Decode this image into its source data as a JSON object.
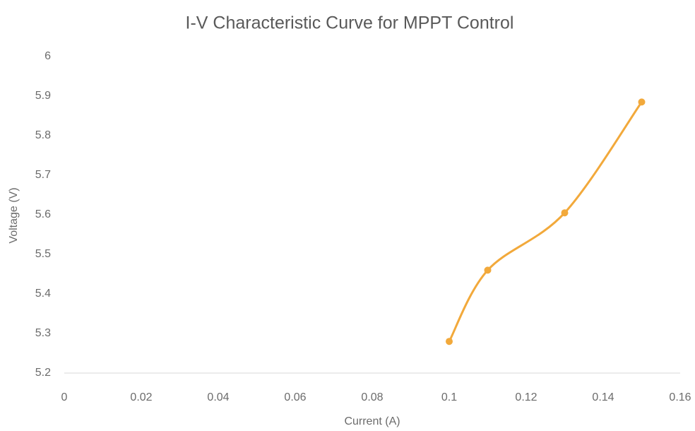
{
  "chart_data": {
    "type": "scatter",
    "title": "I-V Characteristic Curve for MPPT Control",
    "x_label": "Current (A)",
    "y_label": "Voltage (V)",
    "x": [
      0.1,
      0.11,
      0.13,
      0.15
    ],
    "series": [
      {
        "name": "Voltage (V)",
        "color": "#f2a93b",
        "values": [
          5.28,
          5.46,
          5.605,
          5.885
        ]
      }
    ],
    "smooth": true,
    "xlim": [
      0,
      0.16
    ],
    "xticks": [
      0,
      0.02,
      0.04,
      0.06,
      0.08,
      0.1,
      0.12,
      0.14,
      0.16
    ],
    "ylim": [
      5.2,
      6
    ],
    "yticks": [
      5.2,
      5.3,
      5.4,
      5.5,
      5.6,
      5.7,
      5.8,
      5.9,
      6
    ],
    "grid": false
  }
}
